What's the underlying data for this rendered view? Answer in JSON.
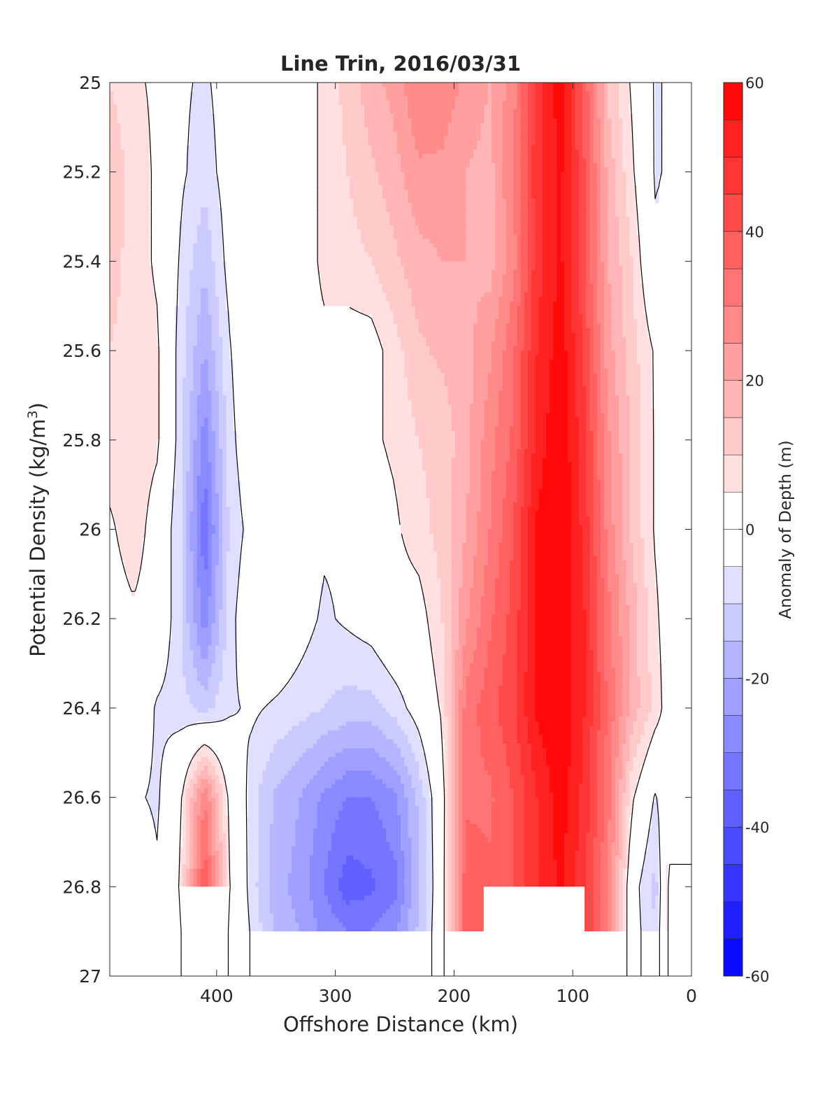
{
  "chart_data": {
    "type": "heatmap",
    "subtype": "filled-contour",
    "title": "Line Trin, 2016/03/31",
    "xlabel": "Offshore Distance (km)",
    "ylabel_main": "Potential Density (kg/m",
    "ylabel_sup": "3",
    "ylabel_close": ")",
    "xlim": [
      490,
      0
    ],
    "ylim": [
      25,
      27
    ],
    "x_reversed": true,
    "y_reversed": true,
    "xticks": [
      400,
      300,
      200,
      100,
      0
    ],
    "xtick_labels": [
      "400",
      "300",
      "200",
      "100",
      "0"
    ],
    "yticks": [
      25,
      25.2,
      25.4,
      25.6,
      25.8,
      26,
      26.2,
      26.4,
      26.6,
      26.8,
      27
    ],
    "ytick_labels": [
      "25",
      "25.2",
      "25.4",
      "25.6",
      "25.8",
      "26",
      "26.2",
      "26.4",
      "26.6",
      "26.8",
      "27"
    ],
    "colorbar": {
      "label": "Anomaly of Depth (m)",
      "range": [
        -60,
        60
      ],
      "levels_step": 5,
      "ticks": [
        60,
        40,
        20,
        0,
        -20,
        -40,
        -60
      ],
      "tick_labels": [
        "60",
        "40",
        "20",
        "0",
        "-20",
        "-40",
        "-60"
      ],
      "colormap": "blue-white-red"
    },
    "zero_contour_color": "#000000",
    "grid": false,
    "data_x_km": [
      490,
      470,
      450,
      430,
      410,
      390,
      370,
      350,
      330,
      310,
      290,
      270,
      250,
      230,
      210,
      190,
      170,
      150,
      130,
      110,
      90,
      70,
      50,
      30,
      20
    ],
    "data_y_density": [
      25.0,
      25.2,
      25.4,
      25.6,
      25.8,
      26.0,
      26.2,
      26.4,
      26.6,
      26.8,
      26.9
    ],
    "anomaly_m": [
      [
        10,
        6,
        4,
        -4,
        -6,
        -2,
        2,
        4,
        2,
        6,
        12,
        18,
        22,
        30,
        28,
        24,
        20,
        28,
        48,
        58,
        38,
        14,
        4,
        -6,
        -4
      ],
      [
        14,
        8,
        4,
        -4,
        -8,
        -2,
        2,
        4,
        2,
        6,
        10,
        14,
        18,
        24,
        24,
        20,
        18,
        30,
        48,
        56,
        40,
        18,
        6,
        -6,
        -4
      ],
      [
        12,
        8,
        4,
        -6,
        -14,
        -3,
        2,
        3,
        2,
        6,
        8,
        10,
        14,
        18,
        20,
        20,
        18,
        28,
        48,
        56,
        40,
        20,
        10,
        -4,
        2
      ],
      [
        10,
        8,
        6,
        -8,
        -20,
        -6,
        3,
        2,
        2,
        4,
        2,
        2,
        8,
        14,
        16,
        18,
        24,
        34,
        50,
        58,
        44,
        22,
        12,
        4,
        2
      ],
      [
        8,
        8,
        6,
        -8,
        -28,
        -8,
        2,
        -1,
        2,
        2,
        2,
        4,
        6,
        10,
        12,
        18,
        28,
        36,
        52,
        60,
        46,
        26,
        14,
        4,
        2
      ],
      [
        4,
        8,
        2,
        -10,
        -34,
        -10,
        -2,
        3,
        2,
        -4,
        -4,
        2,
        4,
        8,
        12,
        20,
        30,
        40,
        56,
        60,
        48,
        28,
        14,
        4,
        2
      ],
      [
        2,
        4,
        2,
        -10,
        -28,
        -8,
        2,
        2,
        -2,
        -6,
        -4,
        -2,
        2,
        2,
        10,
        24,
        34,
        42,
        56,
        60,
        50,
        32,
        18,
        6,
        2
      ],
      [
        2,
        2,
        -6,
        -8,
        -12,
        -6,
        -4,
        -6,
        -8,
        -10,
        -12,
        -12,
        -8,
        -2,
        6,
        32,
        38,
        44,
        56,
        60,
        50,
        34,
        18,
        8,
        2
      ],
      [
        -2,
        -4,
        -6,
        4,
        30,
        4,
        -8,
        -16,
        -20,
        -26,
        -30,
        -30,
        -26,
        -14,
        2,
        34,
        34,
        40,
        50,
        58,
        48,
        32,
        6,
        -6,
        2
      ],
      [
        4,
        2,
        -4,
        6,
        40,
        6,
        -8,
        -18,
        -22,
        -30,
        -38,
        -36,
        -32,
        -16,
        2,
        38,
        36,
        40,
        50,
        56,
        46,
        30,
        -2,
        -12,
        6
      ],
      [
        4,
        2,
        -4,
        4,
        36,
        4,
        -6,
        -16,
        -20,
        -26,
        -30,
        -30,
        -26,
        -14,
        2,
        38,
        36,
        40,
        50,
        56,
        46,
        30,
        -2,
        -10,
        6
      ]
    ],
    "blank_regions": [
      {
        "x_from": 490,
        "x_to": 385,
        "y_from": 26.8,
        "y_to": 27
      },
      {
        "x_from": 385,
        "x_to": 0,
        "y_from": 26.9,
        "y_to": 27
      },
      {
        "x_from": 175,
        "x_to": 90,
        "y_from": 26.8,
        "y_to": 27
      },
      {
        "x_from": 20,
        "x_to": 0,
        "y_from": 25,
        "y_to": 27
      }
    ]
  }
}
